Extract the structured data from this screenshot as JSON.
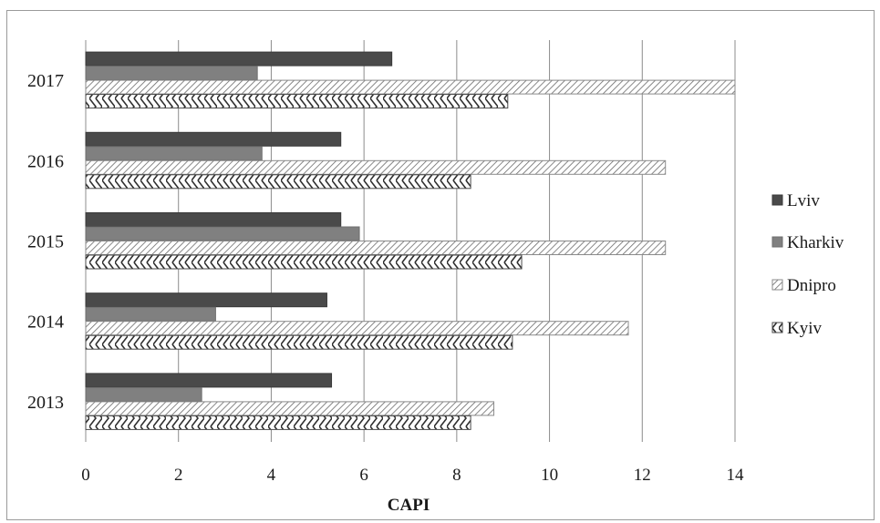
{
  "chart_data": {
    "type": "bar",
    "orientation": "horizontal",
    "title": "",
    "xlabel": "CAPI",
    "ylabel": "",
    "xlim": [
      0,
      14
    ],
    "x_ticks": [
      "0",
      "2",
      "4",
      "6",
      "8",
      "10",
      "12",
      "14"
    ],
    "categories": [
      "2013",
      "2014",
      "2015",
      "2016",
      "2017"
    ],
    "grid": "vertical",
    "legend_position": "right",
    "series": [
      {
        "name": "Lviv",
        "values": [
          5.3,
          5.2,
          5.5,
          5.5,
          6.6
        ],
        "color": "#4a4a4a",
        "pattern": "solid-dark"
      },
      {
        "name": "Kharkiv",
        "values": [
          2.5,
          2.8,
          5.9,
          3.8,
          3.7
        ],
        "color": "#7d7d7d",
        "pattern": "solid-gray"
      },
      {
        "name": "Dnipro",
        "values": [
          8.8,
          11.7,
          12.5,
          12.5,
          14.0
        ],
        "color": "#666666",
        "pattern": "diagonal-hatch"
      },
      {
        "name": "Kyiv",
        "values": [
          8.3,
          9.2,
          9.4,
          8.3,
          9.1
        ],
        "color": "#333333",
        "pattern": "zigzag"
      }
    ]
  }
}
